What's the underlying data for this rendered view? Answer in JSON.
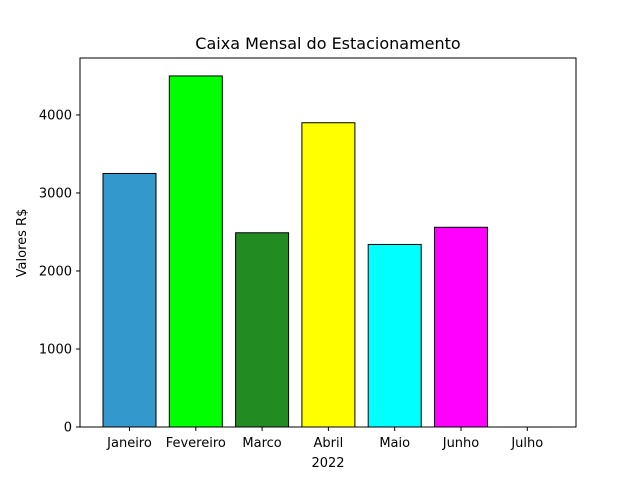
{
  "chart_data": {
    "type": "bar",
    "title": "Caixa Mensal do Estacionamento",
    "xlabel": "2022",
    "ylabel": "Valores R$",
    "categories": [
      "Janeiro",
      "Fevereiro",
      "Marco",
      "Abril",
      "Maio",
      "Junho",
      "Julho"
    ],
    "values": [
      3250,
      4500,
      2490,
      3900,
      2340,
      2560,
      0
    ],
    "colors": [
      "#3399cc",
      "#00ff00",
      "#228b22",
      "#ffff00",
      "#00ffff",
      "#ff00ff",
      "#ffffff"
    ],
    "edge_color": "#000000",
    "ylim": [
      0,
      4730
    ],
    "yticks": [
      0,
      1000,
      2000,
      3000,
      4000
    ],
    "grid": false,
    "legend": "none"
  }
}
